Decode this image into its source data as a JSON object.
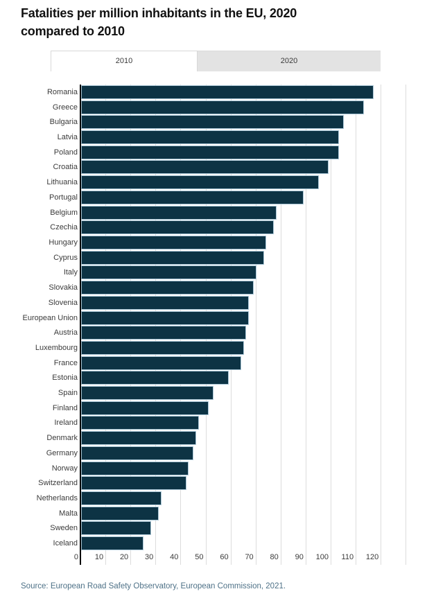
{
  "title": "Fatalities per million inhabitants in the EU, 2020 compared to 2010",
  "tabs": [
    {
      "label": "2010",
      "active": true
    },
    {
      "label": "2020",
      "active": false
    }
  ],
  "source": "Source: European Road Safety Observatory, European Commission, 2021.",
  "colors": {
    "bar_fill": "#0d3344",
    "bar_border": "#a9c6d6",
    "gridline": "#dcdcdc",
    "axis_line": "#000000",
    "inactive_tab_bg": "#e3e3e3",
    "source_text": "#4e7187"
  },
  "chart_data": {
    "type": "bar",
    "orientation": "horizontal",
    "title": "Fatalities per million inhabitants in the EU, 2020 compared to 2010",
    "active_series": "2010",
    "categories": [
      "Romania",
      "Greece",
      "Bulgaria",
      "Latvia",
      "Poland",
      "Croatia",
      "Lithuania",
      "Portugal",
      "Belgium",
      "Czechia",
      "Hungary",
      "Cyprus",
      "Italy",
      "Slovakia",
      "Slovenia",
      "European Union",
      "Austria",
      "Luxembourg",
      "France",
      "Estonia",
      "Spain",
      "Finland",
      "Ireland",
      "Denmark",
      "Germany",
      "Norway",
      "Switzerland",
      "Netherlands",
      "Malta",
      "Sweden",
      "Iceland"
    ],
    "values": [
      117,
      113,
      105,
      103,
      103,
      99,
      95,
      89,
      78,
      77,
      74,
      73,
      70,
      69,
      67,
      67,
      66,
      65,
      64,
      59,
      53,
      51,
      47,
      46,
      45,
      43,
      42,
      32,
      31,
      28,
      25
    ],
    "xlabel": "",
    "ylabel": "",
    "xlim": [
      0,
      130
    ],
    "xticks": [
      0,
      10,
      20,
      30,
      40,
      50,
      60,
      70,
      80,
      90,
      100,
      110,
      120
    ],
    "grid": true,
    "legend": "none"
  }
}
